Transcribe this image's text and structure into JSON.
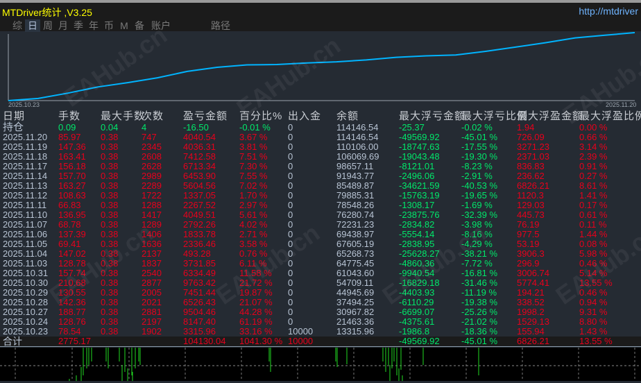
{
  "window": {
    "title": "MTDriver统计 ,V3.25",
    "url": "http://mtdriver"
  },
  "nav": {
    "items": [
      {
        "label": "综"
      },
      {
        "label": "日",
        "active": true
      },
      {
        "label": "周"
      },
      {
        "label": "月"
      },
      {
        "label": "季"
      },
      {
        "label": "年"
      },
      {
        "label": "币"
      },
      {
        "label": "M"
      },
      {
        "label": "备"
      },
      {
        "label": "账户"
      }
    ],
    "path_label": "路径"
  },
  "equity_chart": {
    "start_date": "2025.10.23",
    "end_date": "2025.11.20",
    "line_color": "#00b4ff"
  },
  "table": {
    "headers": [
      "日期",
      "手数",
      "最大手数",
      "次数",
      "盈亏金额",
      "百分比%",
      "出入金",
      "余额",
      "最大浮亏金额",
      "最大浮亏比例",
      "最大浮盈金额",
      "最大浮盈比例"
    ],
    "position_row": [
      "持仓",
      "0.09",
      "0.04",
      "4",
      "-16.50",
      "-0.01 %",
      "0",
      "114146.54",
      "-25.37",
      "-0.02 %",
      "1.94",
      "0.00 %"
    ],
    "rows": [
      [
        "2025.11.20",
        "85.97",
        "0.38",
        "747",
        "4040.54",
        "3.67 %",
        "0",
        "114146.54",
        "-49569.92",
        "-45.01 %",
        "726.09",
        "0.66 %"
      ],
      [
        "2025.11.19",
        "147.36",
        "0.38",
        "2345",
        "4036.31",
        "3.81 %",
        "0",
        "110106.00",
        "-18747.63",
        "-17.55 %",
        "3271.23",
        "3.14 %"
      ],
      [
        "2025.11.18",
        "163.41",
        "0.38",
        "2608",
        "7412.58",
        "7.51 %",
        "0",
        "106069.69",
        "-19043.48",
        "-19.30 %",
        "2371.03",
        "2.39 %"
      ],
      [
        "2025.11.17",
        "156.18",
        "0.38",
        "2628",
        "6713.34",
        "7.30 %",
        "0",
        "98657.11",
        "-8121.01",
        "-8.23 %",
        "836.83",
        "0.91 %"
      ],
      [
        "2025.11.14",
        "157.70",
        "0.38",
        "2989",
        "6453.90",
        "7.55 %",
        "0",
        "91943.77",
        "-2496.06",
        "-2.91 %",
        "236.62",
        "0.27 %"
      ],
      [
        "2025.11.13",
        "163.27",
        "0.38",
        "2289",
        "5604.56",
        "7.02 %",
        "0",
        "85489.87",
        "-34621.59",
        "-40.53 %",
        "6826.21",
        "8.61 %"
      ],
      [
        "2025.11.12",
        "108.63",
        "0.38",
        "1722",
        "1337.05",
        "1.70 %",
        "0",
        "79885.31",
        "-15763.19",
        "-19.65 %",
        "1120.3",
        "1.41 %"
      ],
      [
        "2025.11.11",
        "66.83",
        "0.38",
        "1288",
        "2267.52",
        "2.97 %",
        "0",
        "78548.26",
        "-1308.17",
        "-1.69 %",
        "129.03",
        "0.17 %"
      ],
      [
        "2025.11.10",
        "136.95",
        "0.38",
        "1417",
        "4049.51",
        "5.61 %",
        "0",
        "76280.74",
        "-23875.76",
        "-32.39 %",
        "445.73",
        "0.61 %"
      ],
      [
        "2025.11.07",
        "68.78",
        "0.38",
        "1289",
        "2792.26",
        "4.02 %",
        "0",
        "72231.23",
        "-2834.82",
        "-3.98 %",
        "76.19",
        "0.11 %"
      ],
      [
        "2025.11.06",
        "137.39",
        "0.38",
        "1406",
        "1833.78",
        "2.71 %",
        "0",
        "69438.97",
        "-5554.14",
        "-8.16 %",
        "977.5",
        "1.44 %"
      ],
      [
        "2025.11.05",
        "69.41",
        "0.38",
        "1636",
        "2336.46",
        "3.58 %",
        "0",
        "67605.19",
        "-2838.95",
        "-4.29 %",
        "53.19",
        "0.08 %"
      ],
      [
        "2025.11.04",
        "147.02",
        "0.38",
        "2137",
        "493.28",
        "0.76 %",
        "0",
        "65268.73",
        "-25628.27",
        "-38.21 %",
        "3906.3",
        "5.98 %"
      ],
      [
        "2025.11.03",
        "128.78",
        "0.38",
        "1837",
        "3731.85",
        "6.11 %",
        "0",
        "64775.45",
        "-4860.36",
        "-7.72 %",
        "296.9",
        "0.46 %"
      ],
      [
        "2025.10.31",
        "157.74",
        "0.38",
        "2540",
        "6334.49",
        "11.58 %",
        "0",
        "61043.60",
        "-9940.54",
        "-16.81 %",
        "3006.74",
        "5.14 %"
      ],
      [
        "2025.10.30",
        "210.68",
        "0.38",
        "2877",
        "9763.42",
        "21.72 %",
        "0",
        "54709.11",
        "-16829.18",
        "-31.46 %",
        "5774.41",
        "13.55 %"
      ],
      [
        "2025.10.29",
        "130.55",
        "0.38",
        "2005",
        "7451.44",
        "19.87 %",
        "0",
        "44945.69",
        "-4403.93",
        "-11.19 %",
        "194.21",
        "0.46 %"
      ],
      [
        "2025.10.28",
        "142.36",
        "0.38",
        "2021",
        "6526.43",
        "21.07 %",
        "0",
        "37494.25",
        "-6110.29",
        "-19.38 %",
        "338.52",
        "0.94 %"
      ],
      [
        "2025.10.27",
        "188.77",
        "0.38",
        "2881",
        "9504.46",
        "44.28 %",
        "0",
        "30967.82",
        "-6699.07",
        "-25.26 %",
        "1998.2",
        "9.31 %"
      ],
      [
        "2025.10.24",
        "128.76",
        "0.38",
        "2197",
        "8147.40",
        "61.19 %",
        "0",
        "21463.36",
        "-4375.61",
        "-21.02 %",
        "1529.13",
        "8.80 %"
      ],
      [
        "2025.10.23",
        "78.54",
        "0.38",
        "1902",
        "3315.96",
        "33.16 %",
        "10000",
        "13315.96",
        "-1986.8",
        "-18.36 %",
        "155.94",
        "1.43 %"
      ]
    ],
    "total_row": [
      "合计",
      "2775.17",
      "",
      "",
      "104130.04",
      "1041.30 %",
      "10000",
      "",
      "-49569.92",
      "-45.01 %",
      "6826.21",
      "13.55 %"
    ]
  },
  "watermark": "EAHub.cn",
  "colors": {
    "profit": "#e8001c",
    "loss": "#00e86a",
    "title": "#ffff00",
    "bars": "#22dd22"
  }
}
